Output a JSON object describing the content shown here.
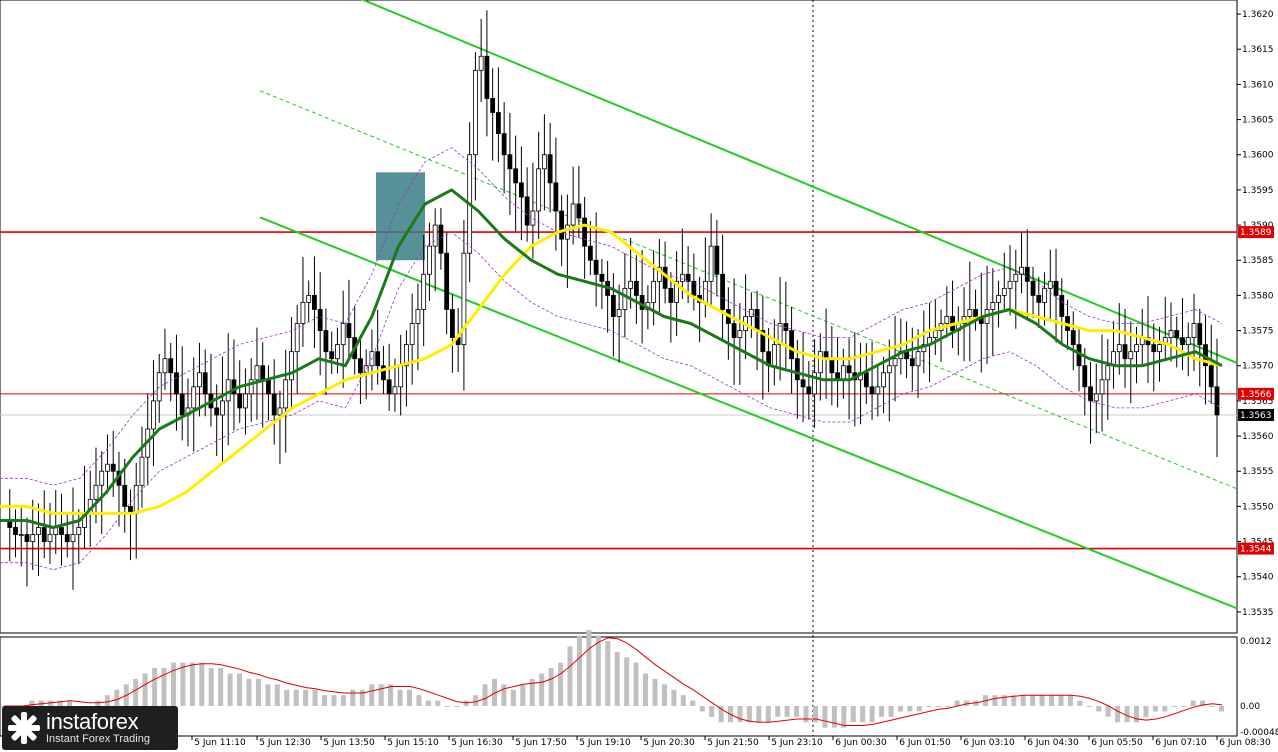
{
  "chart_data": {
    "type": "candlestick",
    "y_ticks": [
      "1.3620",
      "1.3615",
      "1.3610",
      "1.3605",
      "1.3600",
      "1.3595",
      "1.3590",
      "1.3585",
      "1.3580",
      "1.3575",
      "1.3570",
      "1.3565",
      "1.3560",
      "1.3555",
      "1.3550",
      "1.3545",
      "1.3540",
      "1.3535"
    ],
    "ylim": [
      1.3532,
      1.3622
    ],
    "x_ticks": [
      "5 Jun 11:10",
      "5 Jun 12:30",
      "5 Jun 13:50",
      "5 Jun 15:10",
      "5 Jun 16:30",
      "5 Jun 17:50",
      "5 Jun 19:10",
      "5 Jun 20:30",
      "5 Jun 21:50",
      "5 Jun 23:10",
      "6 Jun 00:30",
      "6 Jun 01:50",
      "6 Jun 03:10",
      "6 Jun 04:30",
      "6 Jun 05:50",
      "6 Jun 07:10",
      "6 Jun 08:30"
    ],
    "levels": [
      {
        "value": 1.3589,
        "label": "1.3589",
        "color": "#e00000",
        "style": "solid"
      },
      {
        "value": 1.3566,
        "label": "1.3566",
        "color": "#e00000",
        "style": "thin"
      },
      {
        "value": 1.3544,
        "label": "1.3544",
        "color": "#e00000",
        "style": "solid"
      }
    ],
    "current_price": {
      "value": 1.3563,
      "label": "1.3563"
    },
    "close_path": [
      1.3548,
      1.3547,
      1.3546,
      1.3546,
      1.3545,
      1.3546,
      1.3547,
      1.3545,
      1.3546,
      1.3547,
      1.3546,
      1.3545,
      1.3546,
      1.3547,
      1.3549,
      1.3551,
      1.3553,
      1.3555,
      1.3556,
      1.3555,
      1.3553,
      1.355,
      1.3549,
      1.3553,
      1.3557,
      1.3561,
      1.3565,
      1.3569,
      1.3571,
      1.3569,
      1.3566,
      1.3563,
      1.3564,
      1.3567,
      1.3569,
      1.3566,
      1.3564,
      1.3563,
      1.3565,
      1.3568,
      1.3566,
      1.3564,
      1.3566,
      1.3568,
      1.357,
      1.3568,
      1.3566,
      1.3563,
      1.3564,
      1.3568,
      1.3572,
      1.3576,
      1.3579,
      1.358,
      1.3578,
      1.3575,
      1.3572,
      1.3571,
      1.3573,
      1.3576,
      1.3574,
      1.3571,
      1.3569,
      1.357,
      1.3572,
      1.357,
      1.3568,
      1.3566,
      1.3567,
      1.357,
      1.3573,
      1.3576,
      1.3578,
      1.3583,
      1.3587,
      1.359,
      1.3586,
      1.3578,
      1.3574,
      1.3573,
      1.3586,
      1.36,
      1.3612,
      1.3614,
      1.3608,
      1.3606,
      1.3603,
      1.36,
      1.3598,
      1.3596,
      1.3594,
      1.359,
      1.3592,
      1.3598,
      1.36,
      1.3596,
      1.3592,
      1.3588,
      1.359,
      1.3593,
      1.3591,
      1.3587,
      1.3585,
      1.3583,
      1.3582,
      1.358,
      1.3577,
      1.3578,
      1.3581,
      1.3582,
      1.358,
      1.3578,
      1.3579,
      1.3582,
      1.3584,
      1.3581,
      1.3579,
      1.3582,
      1.3583,
      1.3582,
      1.358,
      1.3579,
      1.3582,
      1.3587,
      1.3583,
      1.3578,
      1.3576,
      1.3574,
      1.3575,
      1.3577,
      1.3578,
      1.3575,
      1.3572,
      1.357,
      1.3573,
      1.3576,
      1.3575,
      1.3571,
      1.3568,
      1.3567,
      1.3566,
      1.3569,
      1.3572,
      1.3571,
      1.3569,
      1.3568,
      1.357,
      1.3569,
      1.3568,
      1.3569,
      1.3567,
      1.3566,
      1.3567,
      1.3569,
      1.357,
      1.3571,
      1.3572,
      1.3571,
      1.357,
      1.3572,
      1.3573,
      1.3574,
      1.3575,
      1.3576,
      1.3577,
      1.3575,
      1.3576,
      1.3577,
      1.3578,
      1.3577,
      1.3576,
      1.3578,
      1.3579,
      1.358,
      1.3581,
      1.3582,
      1.3583,
      1.3584,
      1.3582,
      1.358,
      1.3579,
      1.3581,
      1.3582,
      1.358,
      1.3577,
      1.3575,
      1.3573,
      1.357,
      1.3567,
      1.3565,
      1.3566,
      1.3568,
      1.357,
      1.3572,
      1.3573,
      1.3571,
      1.3572,
      1.3573,
      1.3574,
      1.3573,
      1.3572,
      1.3573,
      1.3574,
      1.3575,
      1.3574,
      1.3573,
      1.3574,
      1.3576,
      1.3573,
      1.357,
      1.3567,
      1.3563
    ],
    "sma_yellow": [
      1.355,
      1.355,
      1.3549,
      1.3549,
      1.3549,
      1.3549,
      1.355,
      1.3552,
      1.3555,
      1.3558,
      1.3561,
      1.3564,
      1.3566,
      1.3568,
      1.3569,
      1.357,
      1.3571,
      1.3573,
      1.3578,
      1.3583,
      1.3587,
      1.3589,
      1.359,
      1.3589,
      1.3586,
      1.3583,
      1.358,
      1.3578,
      1.3576,
      1.3574,
      1.3572,
      1.3571,
      1.3571,
      1.3572,
      1.3573,
      1.3575,
      1.3576,
      1.3577,
      1.3578,
      1.3577,
      1.3576,
      1.3575,
      1.3575,
      1.3574,
      1.3573,
      1.3571,
      1.357
    ],
    "sma_green": [
      1.3548,
      1.3548,
      1.3547,
      1.3548,
      1.3552,
      1.3557,
      1.3561,
      1.3563,
      1.3565,
      1.3567,
      1.3568,
      1.3569,
      1.3571,
      1.357,
      1.3577,
      1.3587,
      1.3593,
      1.3595,
      1.3592,
      1.3588,
      1.3585,
      1.3583,
      1.3582,
      1.3581,
      1.3579,
      1.3577,
      1.3576,
      1.3574,
      1.3572,
      1.357,
      1.3569,
      1.3568,
      1.3568,
      1.357,
      1.3572,
      1.3573,
      1.3575,
      1.3577,
      1.3578,
      1.3576,
      1.3573,
      1.3571,
      1.357,
      1.357,
      1.3571,
      1.3572,
      1.357
    ],
    "channel_upper": [
      [
        1.36225,
        1.35704
      ]
    ],
    "channel_lower": [
      [
        1.35911,
        1.35355
      ]
    ],
    "channel_mid": [
      [
        1.36091,
        1.35525
      ]
    ],
    "macd_ylim": [
      -0.00048,
      0.0012
    ],
    "macd_ticks": [
      "0.0012",
      "0.00",
      "-0.00048"
    ],
    "macd_hist": [
      0.0,
      0.0,
      0.0,
      0.0001,
      0.0001,
      0.0001,
      0.0001,
      0.0001,
      0.0,
      0.0,
      0.0001,
      0.0002,
      0.0003,
      0.0004,
      0.0005,
      0.0006,
      0.0007,
      0.0007,
      0.0008,
      0.0008,
      0.0008,
      0.0008,
      0.0007,
      0.0007,
      0.0006,
      0.0006,
      0.0005,
      0.0005,
      0.0004,
      0.0004,
      0.0003,
      0.0003,
      0.0003,
      0.0003,
      0.0002,
      0.0002,
      0.0002,
      0.0003,
      0.0003,
      0.0004,
      0.0004,
      0.0004,
      0.0003,
      0.0003,
      0.0002,
      0.0001,
      0.0001,
      0.0,
      0.0,
      0.0001,
      0.0002,
      0.0004,
      0.0005,
      0.0004,
      0.0003,
      0.0004,
      0.0005,
      0.0006,
      0.0007,
      0.0008,
      0.0011,
      0.0013,
      0.0014,
      0.0013,
      0.0012,
      0.001,
      0.0009,
      0.0008,
      0.0006,
      0.0005,
      0.0004,
      0.0003,
      0.0002,
      0.0001,
      -0.0001,
      -0.0002,
      -0.0003,
      -0.0003,
      -0.0003,
      -0.0003,
      -0.0003,
      -0.0003,
      -0.0002,
      -0.0002,
      -0.0002,
      -0.0003,
      -0.0003,
      -0.0004,
      -0.0004,
      -0.0004,
      -0.0003,
      -0.0003,
      -0.0003,
      -0.0002,
      -0.0002,
      -0.0001,
      -0.0001,
      -0.0001,
      0.0,
      0.0,
      0.0,
      0.0001,
      0.0001,
      0.0001,
      0.0002,
      0.0002,
      0.0002,
      0.0002,
      0.0002,
      0.0002,
      0.0002,
      0.0002,
      0.0002,
      0.0002,
      0.0001,
      0.0,
      -0.0001,
      -0.0002,
      -0.0003,
      -0.0003,
      -0.0003,
      -0.0002,
      -0.0001,
      -0.0001,
      0.0,
      0.0,
      0.0001,
      0.0001,
      0.0,
      -0.0001
    ]
  },
  "brand": {
    "name": "instaforex",
    "tagline": "Instant Forex Trading"
  },
  "colors": {
    "bull": "#000000",
    "channel": "#22cc22",
    "sma_yellow": "#ffee00",
    "sma_green": "#1a7a1a",
    "envelope": "#9933cc",
    "level": "#e00000",
    "macd_hist": "#c0c0c0",
    "macd_signal": "#e00000",
    "highlight": "#3a7e86"
  }
}
